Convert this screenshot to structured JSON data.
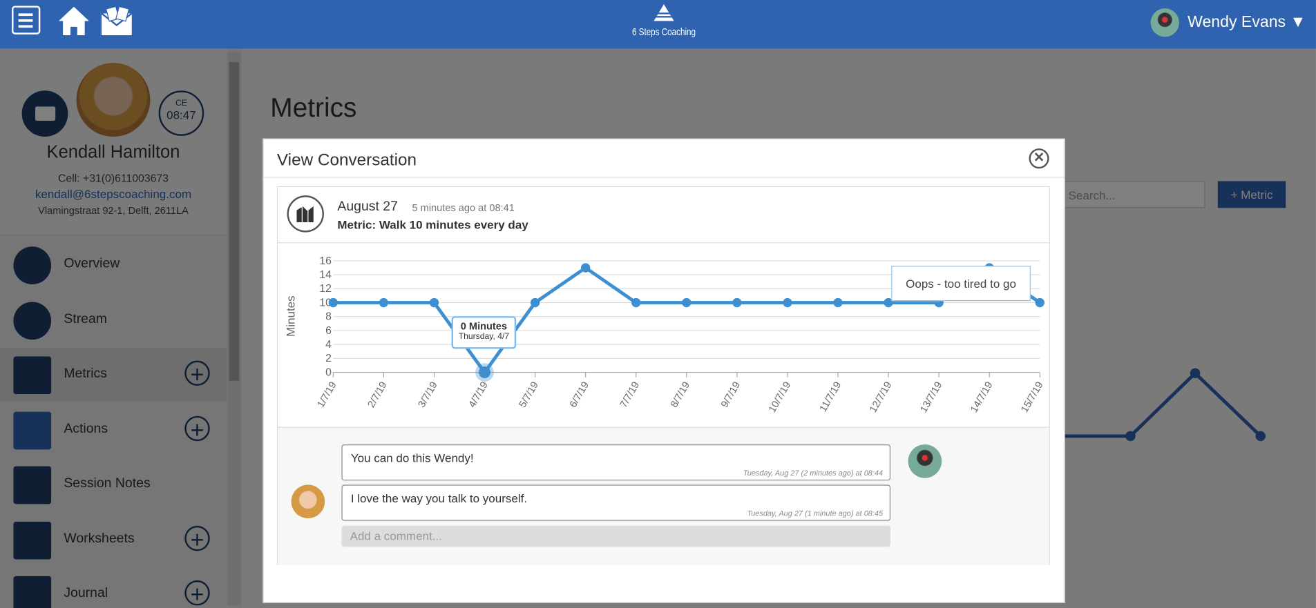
{
  "header": {
    "brand": "6 Steps Coaching",
    "user": "Wendy Evans ▼"
  },
  "profile": {
    "badge": "CE",
    "time": "08:47",
    "name": "Kendall Hamilton",
    "cell": "Cell: +31(0)611003673",
    "email": "kendall@6stepscoaching.com",
    "address": "Vlamingstraat 92-1, Delft, 2611LA"
  },
  "nav": [
    "Overview",
    "Stream",
    "Metrics",
    "Actions",
    "Session Notes",
    "Worksheets",
    "Journal"
  ],
  "page": {
    "title": "Metrics",
    "search": "Search...",
    "button": "+ Metric"
  },
  "modal": {
    "title": "View Conversation",
    "date": "August 27",
    "time": "5 minutes ago at 08:41",
    "metric": "Metric: Walk 10 minutes every day",
    "comments": [
      {
        "text": "You can do this Wendy!",
        "meta": "Tuesday, Aug 27 (2 minutes ago) at 08:44"
      },
      {
        "text": "I love the way you talk to yourself.",
        "meta": "Tuesday, Aug 27 (1 minute ago) at 08:45"
      }
    ],
    "placeholder": "Add a comment..."
  },
  "chart_data": {
    "type": "line",
    "y_label": "Minutes",
    "color": "#3d8fd1",
    "grid": true,
    "categories": [
      "1/7/19",
      "2/7/19",
      "3/7/19",
      "4/7/19",
      "5/7/19",
      "6/7/19",
      "7/7/19",
      "8/7/19",
      "9/7/19",
      "10/7/19",
      "11/7/19",
      "12/7/19",
      "13/7/19",
      "14/7/19",
      "15/7/19"
    ],
    "values": [
      10,
      10,
      10,
      0,
      10,
      15,
      10,
      10,
      10,
      10,
      10,
      10,
      10,
      15,
      10
    ],
    "ylim": [
      0,
      16
    ],
    "yticks": [
      0,
      2,
      4,
      6,
      8,
      10,
      12,
      14,
      16
    ],
    "tooltip": {
      "title": "0 Minutes",
      "subtitle": "Thursday, 4/7"
    },
    "annotation": "Oops - too tired to go"
  }
}
